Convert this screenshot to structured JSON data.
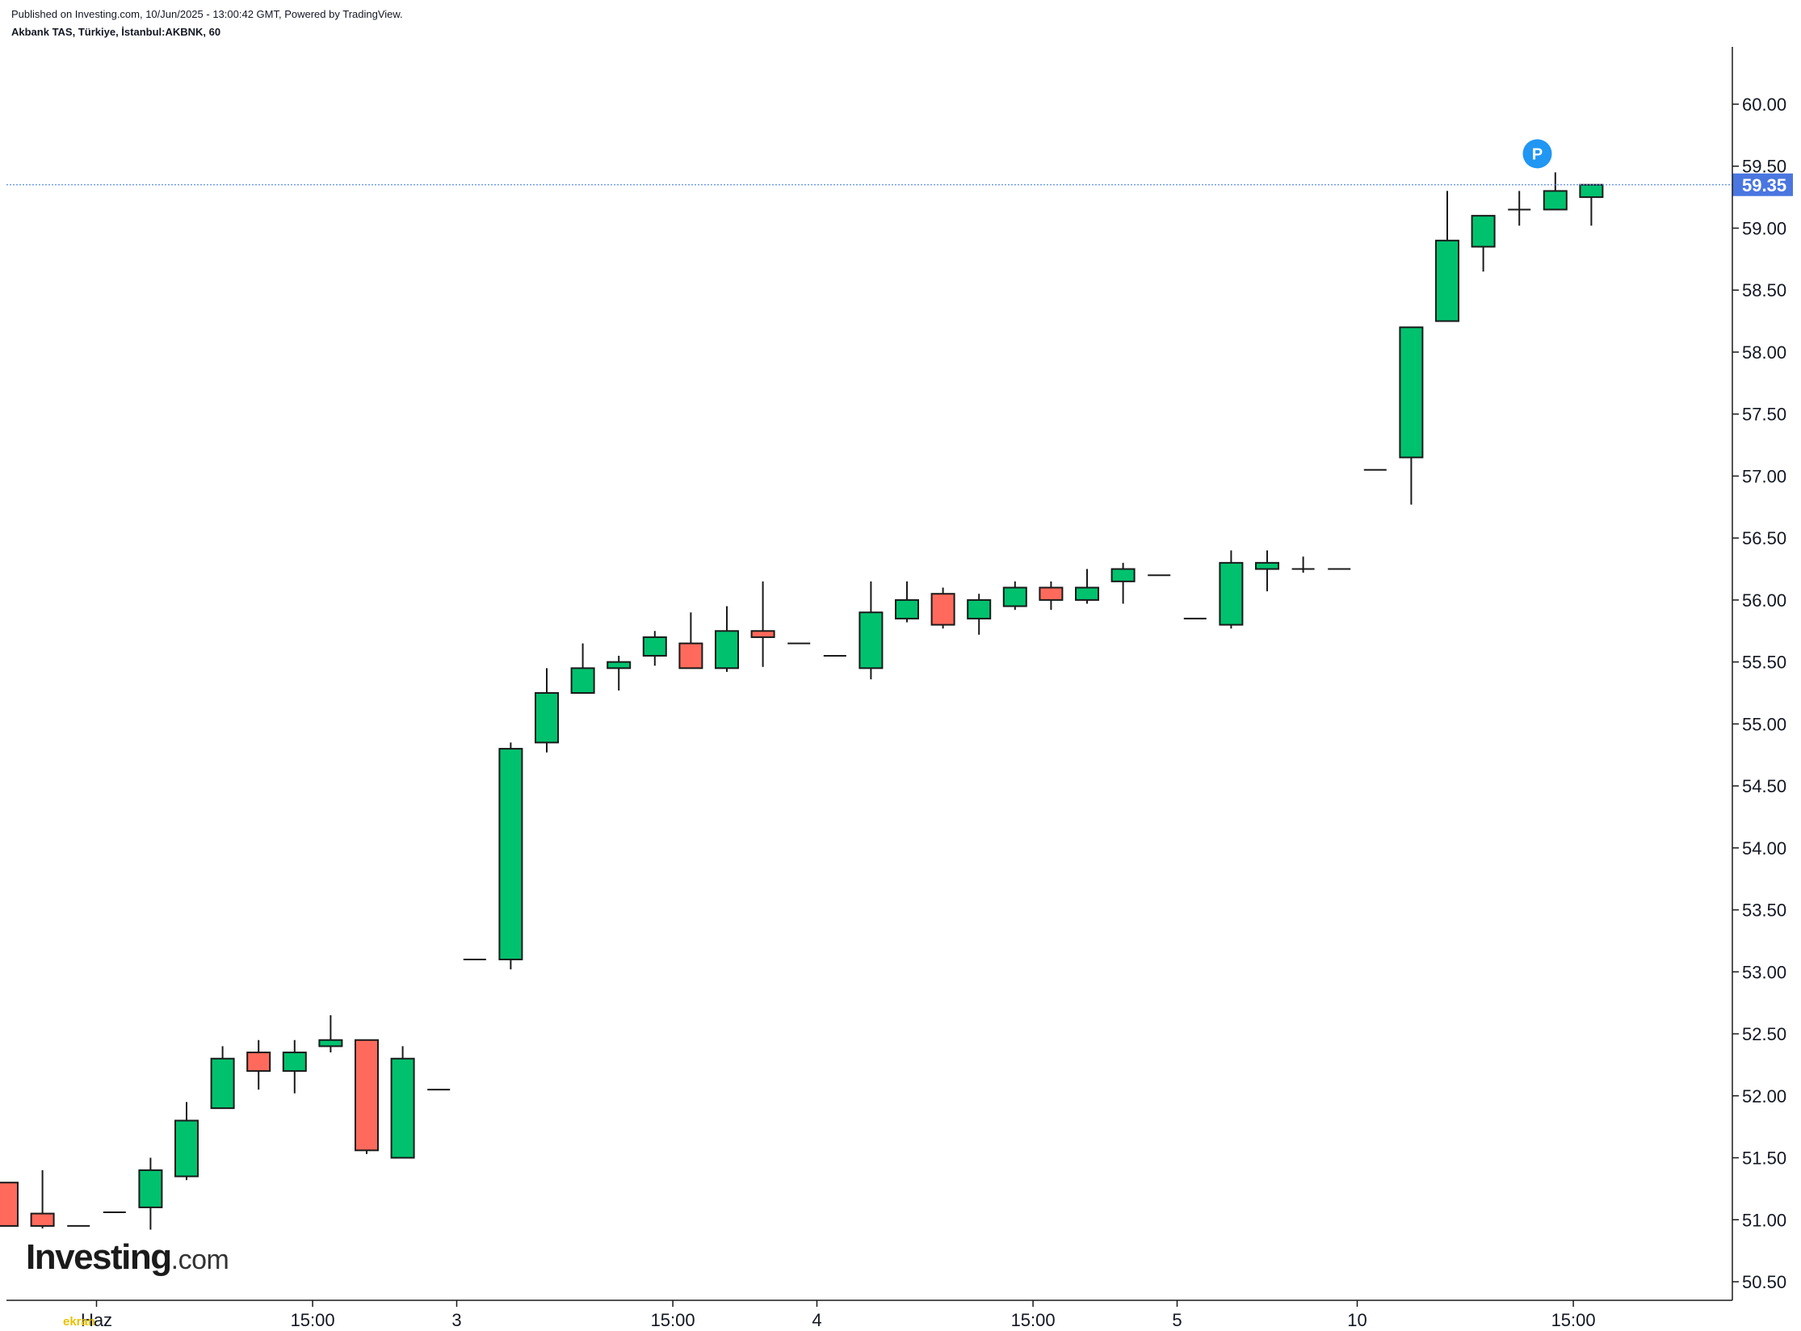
{
  "header": {
    "published": "Published on Investing.com, 10/Jun/2025 - 13:00:42 GMT, Powered by TradingView.",
    "symbol": "Akbank TAS, Türkiye, İstanbul:AKBNK, 60"
  },
  "logo": {
    "brand": "Investing",
    "suffix": ".com",
    "watermark": "ekran"
  },
  "marker": {
    "label": "P"
  },
  "colors": {
    "up": "#00c26e",
    "down": "#ff6a5c",
    "priceLine": "#5b8def",
    "priceTag": "#4a76e0",
    "marker": "#2196f3"
  },
  "chart_data": {
    "type": "candlestick",
    "title": "",
    "ylim": [
      50.4,
      60.5
    ],
    "y_ticks": [
      "60.00",
      "59.50",
      "59.00",
      "58.50",
      "58.00",
      "57.50",
      "57.00",
      "56.50",
      "56.00",
      "55.50",
      "55.00",
      "54.50",
      "54.00",
      "53.50",
      "53.00",
      "52.50",
      "52.00",
      "51.50",
      "51.00",
      "50.50"
    ],
    "x_tick_labels": [
      {
        "label": "Haz",
        "bar": 2.5
      },
      {
        "label": "15:00",
        "bar": 8.5
      },
      {
        "label": "3",
        "bar": 12.5
      },
      {
        "label": "15:00",
        "bar": 18.5
      },
      {
        "label": "4",
        "bar": 22.5
      },
      {
        "label": "15:00",
        "bar": 28.5
      },
      {
        "label": "5",
        "bar": 32.5
      },
      {
        "label": "10",
        "bar": 37.5
      },
      {
        "label": "15:00",
        "bar": 43.5
      }
    ],
    "last_price": "59.35",
    "candles": [
      {
        "o": 51.3,
        "h": 51.3,
        "l": 50.95,
        "c": 50.95
      },
      {
        "o": 51.05,
        "h": 51.4,
        "l": 50.93,
        "c": 50.95
      },
      {
        "o": 50.95,
        "h": 50.95,
        "l": 50.95,
        "c": 50.95
      },
      {
        "o": 51.06,
        "h": 51.06,
        "l": 51.06,
        "c": 51.06
      },
      {
        "o": 51.1,
        "h": 51.5,
        "l": 50.92,
        "c": 51.4
      },
      {
        "o": 51.35,
        "h": 51.95,
        "l": 51.32,
        "c": 51.8
      },
      {
        "o": 51.9,
        "h": 52.4,
        "l": 51.9,
        "c": 52.3
      },
      {
        "o": 52.35,
        "h": 52.45,
        "l": 52.05,
        "c": 52.2
      },
      {
        "o": 52.2,
        "h": 52.45,
        "l": 52.02,
        "c": 52.35
      },
      {
        "o": 52.4,
        "h": 52.65,
        "l": 52.35,
        "c": 52.45
      },
      {
        "o": 52.45,
        "h": 52.45,
        "l": 51.53,
        "c": 51.56
      },
      {
        "o": 51.5,
        "h": 52.4,
        "l": 51.5,
        "c": 52.3
      },
      {
        "o": 52.05,
        "h": 52.05,
        "l": 52.05,
        "c": 52.05
      },
      {
        "o": 53.1,
        "h": 53.1,
        "l": 53.1,
        "c": 53.1
      },
      {
        "o": 53.1,
        "h": 54.85,
        "l": 53.02,
        "c": 54.8
      },
      {
        "o": 54.85,
        "h": 55.45,
        "l": 54.77,
        "c": 55.25
      },
      {
        "o": 55.25,
        "h": 55.65,
        "l": 55.25,
        "c": 55.45
      },
      {
        "o": 55.45,
        "h": 55.55,
        "l": 55.27,
        "c": 55.5
      },
      {
        "o": 55.55,
        "h": 55.75,
        "l": 55.47,
        "c": 55.7
      },
      {
        "o": 55.65,
        "h": 55.9,
        "l": 55.45,
        "c": 55.45
      },
      {
        "o": 55.45,
        "h": 55.95,
        "l": 55.42,
        "c": 55.75
      },
      {
        "o": 55.75,
        "h": 56.15,
        "l": 55.46,
        "c": 55.7
      },
      {
        "o": 55.65,
        "h": 55.65,
        "l": 55.65,
        "c": 55.65
      },
      {
        "o": 55.55,
        "h": 55.55,
        "l": 55.55,
        "c": 55.55
      },
      {
        "o": 55.45,
        "h": 56.15,
        "l": 55.36,
        "c": 55.9
      },
      {
        "o": 55.85,
        "h": 56.15,
        "l": 55.82,
        "c": 56.0
      },
      {
        "o": 56.05,
        "h": 56.1,
        "l": 55.77,
        "c": 55.8
      },
      {
        "o": 55.85,
        "h": 56.05,
        "l": 55.72,
        "c": 56.0
      },
      {
        "o": 55.95,
        "h": 56.15,
        "l": 55.92,
        "c": 56.1
      },
      {
        "o": 56.1,
        "h": 56.15,
        "l": 55.92,
        "c": 56.0
      },
      {
        "o": 56.0,
        "h": 56.25,
        "l": 55.97,
        "c": 56.1
      },
      {
        "o": 56.15,
        "h": 56.3,
        "l": 55.97,
        "c": 56.25
      },
      {
        "o": 56.2,
        "h": 56.2,
        "l": 56.2,
        "c": 56.2
      },
      {
        "o": 55.85,
        "h": 55.85,
        "l": 55.85,
        "c": 55.85
      },
      {
        "o": 55.8,
        "h": 56.4,
        "l": 55.77,
        "c": 56.3
      },
      {
        "o": 56.25,
        "h": 56.4,
        "l": 56.07,
        "c": 56.3
      },
      {
        "o": 56.25,
        "h": 56.35,
        "l": 56.22,
        "c": 56.25
      },
      {
        "o": 56.25,
        "h": 56.25,
        "l": 56.25,
        "c": 56.25
      },
      {
        "o": 57.05,
        "h": 57.05,
        "l": 57.05,
        "c": 57.05
      },
      {
        "o": 57.15,
        "h": 58.2,
        "l": 56.77,
        "c": 58.2
      },
      {
        "o": 58.25,
        "h": 59.3,
        "l": 58.25,
        "c": 58.9
      },
      {
        "o": 58.85,
        "h": 59.1,
        "l": 58.65,
        "c": 59.1
      },
      {
        "o": 59.15,
        "h": 59.3,
        "l": 59.02,
        "c": 59.15
      },
      {
        "o": 59.15,
        "h": 59.45,
        "l": 59.15,
        "c": 59.3
      },
      {
        "o": 59.25,
        "h": 59.35,
        "l": 59.02,
        "c": 59.35
      }
    ]
  }
}
